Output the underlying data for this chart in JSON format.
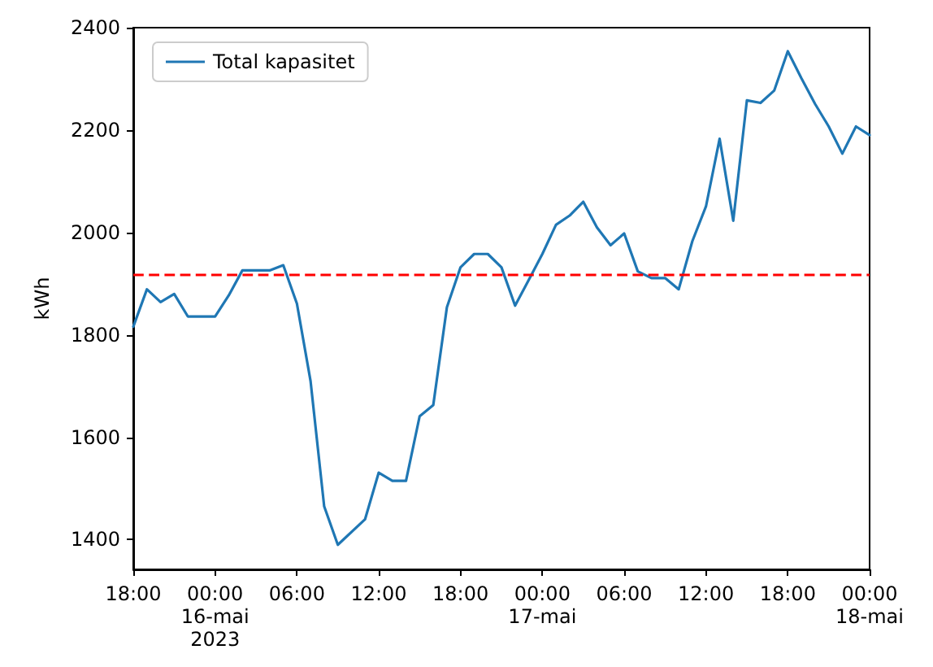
{
  "chart_data": {
    "type": "line",
    "ylabel": "kWh",
    "legend": "top left",
    "marker": "none",
    "line_style": "solid",
    "grid": false,
    "x": [
      "2023-05-15T18:00",
      "2023-05-15T19:00",
      "2023-05-15T20:00",
      "2023-05-15T21:00",
      "2023-05-15T22:00",
      "2023-05-16T00:00",
      "2023-05-16T01:00",
      "2023-05-16T02:00",
      "2023-05-16T04:00",
      "2023-05-16T05:00",
      "2023-05-16T06:00",
      "2023-05-16T07:00",
      "2023-05-16T08:00",
      "2023-05-16T09:00",
      "2023-05-16T11:00",
      "2023-05-16T12:00",
      "2023-05-16T13:00",
      "2023-05-16T14:00",
      "2023-05-16T15:00",
      "2023-05-16T16:00",
      "2023-05-16T17:00",
      "2023-05-16T18:00",
      "2023-05-16T19:00",
      "2023-05-16T20:00",
      "2023-05-16T21:00",
      "2023-05-16T22:00",
      "2023-05-16T23:00",
      "2023-05-17T00:00",
      "2023-05-17T01:00",
      "2023-05-17T02:00",
      "2023-05-17T03:00",
      "2023-05-17T04:00",
      "2023-05-17T05:00",
      "2023-05-17T06:00",
      "2023-05-17T07:00",
      "2023-05-17T08:00",
      "2023-05-17T09:00",
      "2023-05-17T10:00",
      "2023-05-17T11:00",
      "2023-05-17T12:00",
      "2023-05-17T13:00",
      "2023-05-17T14:00",
      "2023-05-17T15:00",
      "2023-05-17T16:00",
      "2023-05-17T17:00",
      "2023-05-17T18:00",
      "2023-05-17T19:00",
      "2023-05-17T20:00",
      "2023-05-17T21:00",
      "2023-05-17T22:00",
      "2023-05-17T23:00",
      "2023-05-18T00:00"
    ],
    "series": [
      {
        "name": "Total kapasitet",
        "color": "#1f77b4",
        "values": [
          1816,
          1889,
          1864,
          1880,
          1836,
          1836,
          1877,
          1926,
          1926,
          1936,
          1861,
          1710,
          1465,
          1390,
          1440,
          1531,
          1515,
          1515,
          1641,
          1663,
          1854,
          1932,
          1958,
          1958,
          1932,
          1857,
          1907,
          1958,
          2015,
          2033,
          2060,
          2010,
          1975,
          1998,
          1924,
          1911,
          1911,
          1889,
          1983,
          2051,
          2183,
          2023,
          2258,
          2253,
          2277,
          2354,
          2301,
          2251,
          2207,
          2154,
          2207,
          2190
        ]
      }
    ],
    "xlim": [
      "2023-05-15T18:00",
      "2023-05-18T00:00"
    ],
    "xticks": [
      {
        "value": "2023-05-15T18:00",
        "label": "18:00"
      },
      {
        "value": "2023-05-16T00:00",
        "label": "00:00\n16-mai\n2023"
      },
      {
        "value": "2023-05-16T06:00",
        "label": "06:00"
      },
      {
        "value": "2023-05-16T12:00",
        "label": "12:00"
      },
      {
        "value": "2023-05-16T18:00",
        "label": "18:00"
      },
      {
        "value": "2023-05-17T00:00",
        "label": "00:00\n17-mai"
      },
      {
        "value": "2023-05-17T06:00",
        "label": "06:00"
      },
      {
        "value": "2023-05-17T12:00",
        "label": "12:00"
      },
      {
        "value": "2023-05-17T18:00",
        "label": "18:00"
      },
      {
        "value": "2023-05-18T00:00",
        "label": "00:00\n18-mai"
      }
    ],
    "ylim": [
      1342,
      2400
    ],
    "yticks": [
      1400,
      1600,
      1800,
      2000,
      2200,
      2400
    ],
    "ref_lines": [
      {
        "axis": "y",
        "value": 1918,
        "color": "#ff0000",
        "line_style": "dashed"
      }
    ]
  }
}
